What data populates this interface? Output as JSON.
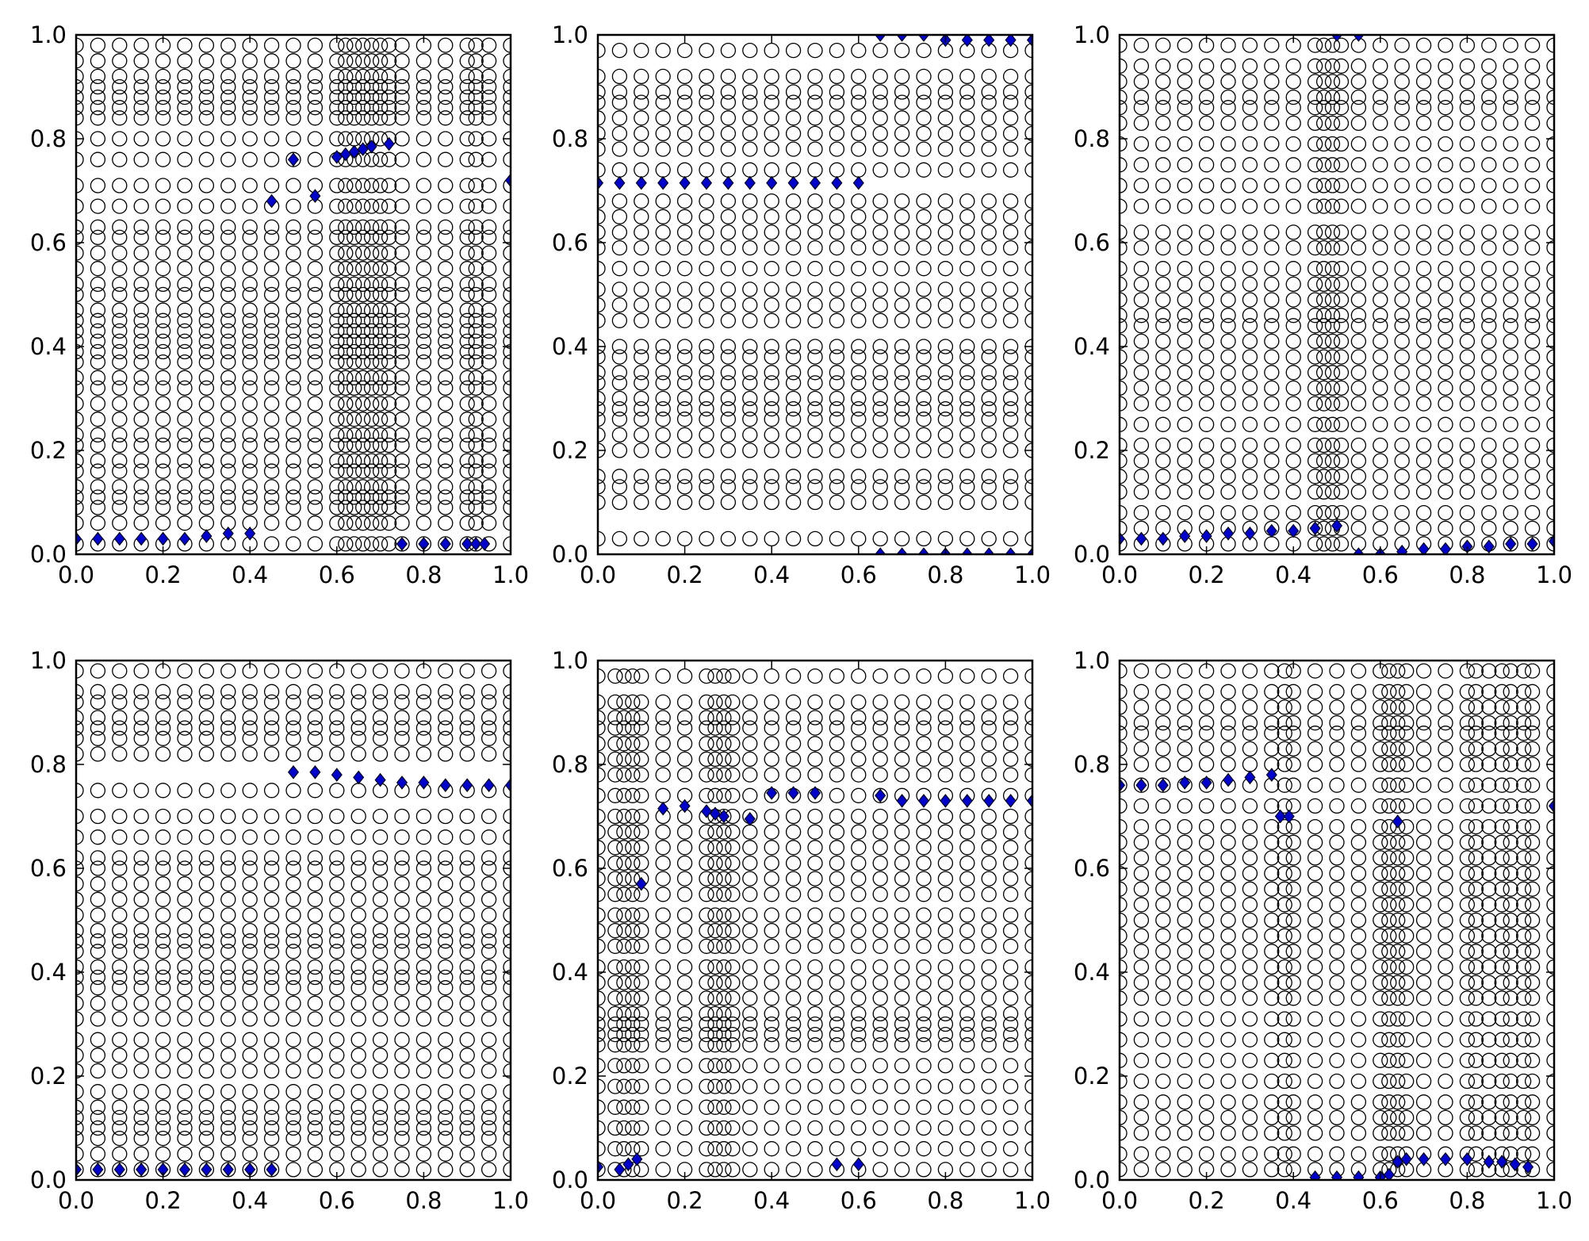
{
  "chart_data": [
    {
      "type": "scatter",
      "panel": "top-left",
      "title": "",
      "xlabel": "",
      "ylabel": "",
      "xlim": [
        0,
        1
      ],
      "ylim": [
        0,
        1
      ],
      "x_ticks": [
        "0.0",
        "0.2",
        "0.4",
        "0.6",
        "0.8",
        "1.0"
      ],
      "y_ticks": [
        "0.0",
        "0.2",
        "0.4",
        "0.6",
        "0.8",
        "1.0"
      ],
      "grid": false,
      "circle_x": [
        0.0,
        0.05,
        0.1,
        0.15,
        0.2,
        0.25,
        0.3,
        0.35,
        0.4,
        0.45,
        0.5,
        0.55,
        0.6,
        0.62,
        0.64,
        0.66,
        0.68,
        0.7,
        0.72,
        0.75,
        0.8,
        0.85,
        0.9,
        0.92,
        0.95,
        1.0
      ],
      "circle_y_levels": [
        0.02,
        0.06,
        0.09,
        0.11,
        0.13,
        0.16,
        0.18,
        0.21,
        0.23,
        0.26,
        0.29,
        0.32,
        0.34,
        0.37,
        0.39,
        0.41,
        0.43,
        0.45,
        0.47,
        0.5,
        0.52,
        0.55,
        0.58,
        0.61,
        0.63,
        0.67,
        0.71,
        0.76,
        0.8,
        0.84,
        0.86,
        0.88,
        0.9,
        0.92,
        0.95,
        0.98
      ],
      "highlight_x": [
        0.0,
        0.05,
        0.1,
        0.15,
        0.2,
        0.25,
        0.3,
        0.35,
        0.4,
        0.45,
        0.5,
        0.55,
        0.6,
        0.62,
        0.64,
        0.66,
        0.68,
        0.72,
        0.75,
        0.8,
        0.85,
        0.9,
        0.92,
        0.94,
        1.0
      ],
      "highlight_y": [
        0.03,
        0.03,
        0.03,
        0.03,
        0.03,
        0.03,
        0.035,
        0.04,
        0.04,
        0.68,
        0.76,
        0.69,
        0.765,
        0.77,
        0.775,
        0.78,
        0.785,
        0.79,
        0.02,
        0.02,
        0.02,
        0.02,
        0.02,
        0.02,
        0.72
      ]
    },
    {
      "type": "scatter",
      "panel": "top-middle",
      "title": "",
      "xlabel": "",
      "ylabel": "",
      "xlim": [
        0,
        1
      ],
      "ylim": [
        0,
        1
      ],
      "x_ticks": [
        "0.0",
        "0.2",
        "0.4",
        "0.6",
        "0.8",
        "1.0"
      ],
      "y_ticks": [
        "0.0",
        "0.2",
        "0.4",
        "0.6",
        "0.8",
        "1.0"
      ],
      "grid": false,
      "circle_x": [
        0.0,
        0.05,
        0.1,
        0.15,
        0.2,
        0.25,
        0.3,
        0.35,
        0.4,
        0.45,
        0.5,
        0.55,
        0.6,
        0.65,
        0.7,
        0.75,
        0.8,
        0.85,
        0.9,
        0.95,
        1.0
      ],
      "circle_y_levels": [
        0.03,
        0.1,
        0.13,
        0.15,
        0.2,
        0.23,
        0.26,
        0.28,
        0.3,
        0.33,
        0.35,
        0.38,
        0.4,
        0.45,
        0.48,
        0.51,
        0.55,
        0.59,
        0.62,
        0.65,
        0.68,
        0.74,
        0.78,
        0.81,
        0.84,
        0.87,
        0.89,
        0.92,
        0.97
      ],
      "highlight_x": [
        0.0,
        0.05,
        0.1,
        0.15,
        0.2,
        0.25,
        0.3,
        0.35,
        0.4,
        0.45,
        0.5,
        0.55,
        0.6,
        0.65,
        0.7,
        0.75,
        0.8,
        0.85,
        0.9,
        0.95,
        1.0,
        0.65,
        0.7,
        0.75,
        0.8,
        0.85,
        0.9,
        0.95,
        1.0
      ],
      "highlight_y": [
        0.715,
        0.715,
        0.715,
        0.715,
        0.715,
        0.715,
        0.715,
        0.715,
        0.715,
        0.715,
        0.715,
        0.715,
        0.715,
        1.0,
        1.0,
        1.0,
        0.99,
        0.99,
        0.99,
        0.99,
        0.99,
        0.0,
        0.0,
        0.0,
        0.0,
        0.0,
        0.0,
        0.0,
        0.0
      ]
    },
    {
      "type": "scatter",
      "panel": "top-right",
      "title": "",
      "xlabel": "",
      "ylabel": "",
      "xlim": [
        0,
        1
      ],
      "ylim": [
        0,
        1
      ],
      "x_ticks": [
        "0.0",
        "0.2",
        "0.4",
        "0.6",
        "0.8",
        "1.0"
      ],
      "y_ticks": [
        "0.0",
        "0.2",
        "0.4",
        "0.6",
        "0.8",
        "1.0"
      ],
      "grid": false,
      "circle_x": [
        0.0,
        0.05,
        0.1,
        0.15,
        0.2,
        0.25,
        0.3,
        0.35,
        0.4,
        0.45,
        0.47,
        0.49,
        0.51,
        0.55,
        0.6,
        0.65,
        0.7,
        0.75,
        0.8,
        0.85,
        0.9,
        0.95,
        1.0
      ],
      "circle_y_levels": [
        0.02,
        0.05,
        0.08,
        0.12,
        0.15,
        0.18,
        0.21,
        0.25,
        0.29,
        0.32,
        0.35,
        0.38,
        0.41,
        0.44,
        0.46,
        0.49,
        0.52,
        0.55,
        0.59,
        0.62,
        0.67,
        0.71,
        0.75,
        0.79,
        0.83,
        0.86,
        0.88,
        0.91,
        0.94,
        0.98
      ],
      "highlight_x": [
        0.0,
        0.05,
        0.1,
        0.15,
        0.2,
        0.25,
        0.3,
        0.35,
        0.4,
        0.45,
        0.5,
        0.55,
        0.6,
        0.65,
        0.7,
        0.75,
        0.8,
        0.85,
        0.9,
        0.95,
        1.0,
        0.5,
        0.55
      ],
      "highlight_y": [
        0.03,
        0.03,
        0.03,
        0.035,
        0.035,
        0.04,
        0.04,
        0.045,
        0.045,
        0.05,
        0.055,
        0.0,
        0.0,
        0.005,
        0.01,
        0.01,
        0.015,
        0.015,
        0.02,
        0.02,
        0.025,
        1.0,
        1.0
      ]
    },
    {
      "type": "scatter",
      "panel": "bottom-left",
      "title": "",
      "xlabel": "",
      "ylabel": "",
      "xlim": [
        0,
        1
      ],
      "ylim": [
        0,
        1
      ],
      "x_ticks": [
        "0.0",
        "0.2",
        "0.4",
        "0.6",
        "0.8",
        "1.0"
      ],
      "y_ticks": [
        "0.0",
        "0.2",
        "0.4",
        "0.6",
        "0.8",
        "1.0"
      ],
      "grid": false,
      "circle_x": [
        0.0,
        0.05,
        0.1,
        0.15,
        0.2,
        0.25,
        0.3,
        0.35,
        0.4,
        0.45,
        0.5,
        0.55,
        0.6,
        0.65,
        0.7,
        0.75,
        0.8,
        0.85,
        0.9,
        0.95,
        1.0
      ],
      "circle_y_levels": [
        0.02,
        0.05,
        0.08,
        0.1,
        0.12,
        0.14,
        0.17,
        0.21,
        0.24,
        0.27,
        0.31,
        0.34,
        0.37,
        0.39,
        0.41,
        0.44,
        0.46,
        0.48,
        0.51,
        0.54,
        0.57,
        0.6,
        0.62,
        0.66,
        0.7,
        0.75,
        0.82,
        0.85,
        0.87,
        0.89,
        0.92,
        0.94,
        0.98
      ],
      "highlight_x": [
        0.0,
        0.05,
        0.1,
        0.15,
        0.2,
        0.25,
        0.3,
        0.35,
        0.4,
        0.45,
        0.5,
        0.55,
        0.6,
        0.65,
        0.7,
        0.75,
        0.8,
        0.85,
        0.9,
        0.95,
        1.0
      ],
      "highlight_y": [
        0.02,
        0.02,
        0.02,
        0.02,
        0.02,
        0.02,
        0.02,
        0.02,
        0.02,
        0.02,
        0.785,
        0.785,
        0.78,
        0.775,
        0.77,
        0.765,
        0.765,
        0.76,
        0.76,
        0.76,
        0.76
      ]
    },
    {
      "type": "scatter",
      "panel": "bottom-middle",
      "title": "",
      "xlabel": "",
      "ylabel": "",
      "xlim": [
        0,
        1
      ],
      "ylim": [
        0,
        1
      ],
      "x_ticks": [
        "0.0",
        "0.2",
        "0.4",
        "0.6",
        "0.8",
        "1.0"
      ],
      "y_ticks": [
        "0.0",
        "0.2",
        "0.4",
        "0.6",
        "0.8",
        "1.0"
      ],
      "grid": false,
      "circle_x": [
        0.0,
        0.04,
        0.06,
        0.08,
        0.1,
        0.15,
        0.2,
        0.25,
        0.27,
        0.29,
        0.31,
        0.35,
        0.4,
        0.45,
        0.5,
        0.55,
        0.6,
        0.65,
        0.7,
        0.75,
        0.8,
        0.85,
        0.9,
        0.95,
        1.0
      ],
      "circle_y_levels": [
        0.02,
        0.06,
        0.1,
        0.14,
        0.18,
        0.22,
        0.26,
        0.28,
        0.3,
        0.32,
        0.35,
        0.38,
        0.41,
        0.45,
        0.48,
        0.51,
        0.55,
        0.58,
        0.61,
        0.64,
        0.67,
        0.7,
        0.74,
        0.78,
        0.81,
        0.84,
        0.87,
        0.89,
        0.92,
        0.97
      ],
      "highlight_x": [
        0.0,
        0.05,
        0.07,
        0.09,
        0.1,
        0.15,
        0.2,
        0.25,
        0.27,
        0.29,
        0.35,
        0.4,
        0.45,
        0.5,
        0.55,
        0.6,
        0.65,
        0.7,
        0.75,
        0.8,
        0.85,
        0.9,
        0.95,
        1.0
      ],
      "highlight_y": [
        0.025,
        0.02,
        0.03,
        0.04,
        0.57,
        0.715,
        0.72,
        0.71,
        0.705,
        0.7,
        0.695,
        0.745,
        0.745,
        0.745,
        0.03,
        0.03,
        0.74,
        0.73,
        0.73,
        0.73,
        0.73,
        0.73,
        0.73,
        0.73
      ]
    },
    {
      "type": "scatter",
      "panel": "bottom-right",
      "title": "",
      "xlabel": "",
      "ylabel": "",
      "xlim": [
        0,
        1
      ],
      "ylim": [
        0,
        1
      ],
      "x_ticks": [
        "0.0",
        "0.2",
        "0.4",
        "0.6",
        "0.8",
        "1.0"
      ],
      "y_ticks": [
        "0.0",
        "0.2",
        "0.4",
        "0.6",
        "0.8",
        "1.0"
      ],
      "grid": false,
      "circle_x": [
        0.0,
        0.05,
        0.1,
        0.15,
        0.2,
        0.25,
        0.3,
        0.35,
        0.38,
        0.4,
        0.45,
        0.5,
        0.55,
        0.6,
        0.62,
        0.64,
        0.66,
        0.7,
        0.75,
        0.8,
        0.82,
        0.85,
        0.88,
        0.9,
        0.93,
        0.95,
        1.0
      ],
      "circle_y_levels": [
        0.02,
        0.05,
        0.09,
        0.12,
        0.15,
        0.19,
        0.23,
        0.27,
        0.31,
        0.35,
        0.38,
        0.41,
        0.44,
        0.47,
        0.5,
        0.53,
        0.56,
        0.59,
        0.62,
        0.65,
        0.68,
        0.72,
        0.76,
        0.8,
        0.83,
        0.86,
        0.88,
        0.91,
        0.94,
        0.98
      ],
      "highlight_x": [
        0.0,
        0.05,
        0.1,
        0.15,
        0.2,
        0.25,
        0.3,
        0.35,
        0.37,
        0.39,
        0.45,
        0.5,
        0.55,
        0.6,
        0.62,
        0.64,
        0.66,
        0.7,
        0.75,
        0.8,
        0.85,
        0.88,
        0.91,
        0.94,
        1.0,
        0.64
      ],
      "highlight_y": [
        0.76,
        0.76,
        0.76,
        0.765,
        0.765,
        0.77,
        0.775,
        0.78,
        0.7,
        0.7,
        0.005,
        0.005,
        0.005,
        0.005,
        0.01,
        0.035,
        0.04,
        0.04,
        0.04,
        0.04,
        0.035,
        0.035,
        0.03,
        0.025,
        0.72,
        0.69
      ]
    }
  ],
  "colors": {
    "circle_edge": "#000000",
    "highlight_marker": "#0000cc",
    "axes": "#000000",
    "background": "#ffffff"
  },
  "markers": {
    "base": "open-circle",
    "highlight": "filled-diamond"
  }
}
